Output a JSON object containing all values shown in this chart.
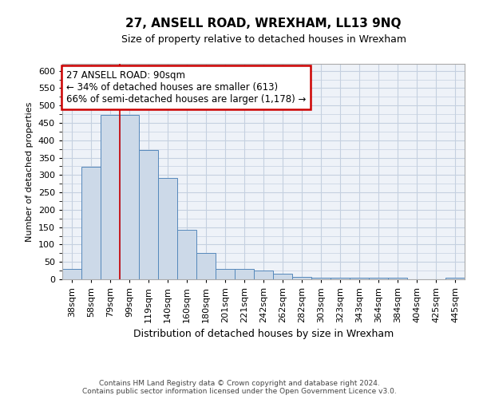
{
  "title": "27, ANSELL ROAD, WREXHAM, LL13 9NQ",
  "subtitle": "Size of property relative to detached houses in Wrexham",
  "xlabel": "Distribution of detached houses by size in Wrexham",
  "ylabel": "Number of detached properties",
  "categories": [
    "38sqm",
    "58sqm",
    "79sqm",
    "99sqm",
    "119sqm",
    "140sqm",
    "160sqm",
    "180sqm",
    "201sqm",
    "221sqm",
    "242sqm",
    "262sqm",
    "282sqm",
    "303sqm",
    "323sqm",
    "343sqm",
    "364sqm",
    "384sqm",
    "404sqm",
    "425sqm",
    "445sqm"
  ],
  "values": [
    30,
    323,
    472,
    472,
    373,
    291,
    143,
    75,
    31,
    29,
    26,
    15,
    8,
    5,
    4,
    4,
    4,
    4,
    1,
    1,
    5
  ],
  "bar_color": "#ccd9e8",
  "bar_edge_color": "#5588bb",
  "red_line_x": 2.5,
  "annotation_line1": "27 ANSELL ROAD: 90sqm",
  "annotation_line2": "← 34% of detached houses are smaller (613)",
  "annotation_line3": "66% of semi-detached houses are larger (1,178) →",
  "annotation_box_facecolor": "#ffffff",
  "annotation_box_edgecolor": "#cc0000",
  "footer_text": "Contains HM Land Registry data © Crown copyright and database right 2024.\nContains public sector information licensed under the Open Government Licence v3.0.",
  "ylim": [
    0,
    620
  ],
  "yticks": [
    0,
    50,
    100,
    150,
    200,
    250,
    300,
    350,
    400,
    450,
    500,
    550,
    600
  ],
  "grid_color": "#c5d0e0",
  "bg_color": "#eef2f8",
  "title_fontsize": 11,
  "subtitle_fontsize": 9,
  "ylabel_fontsize": 8,
  "xlabel_fontsize": 9,
  "tick_fontsize": 8,
  "footer_fontsize": 6.5
}
